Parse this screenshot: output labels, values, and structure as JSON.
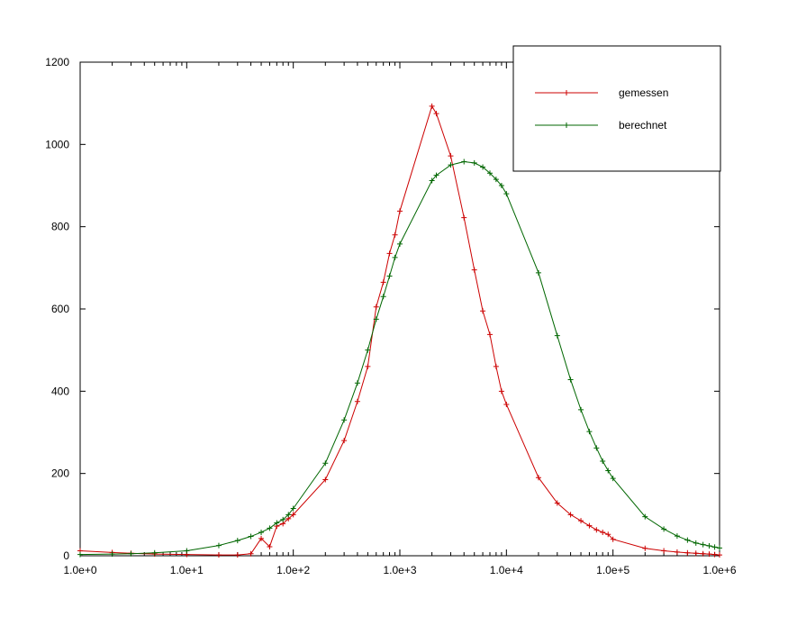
{
  "chart_data": {
    "type": "line",
    "title": "",
    "xlabel": "",
    "ylabel": "",
    "xscale": "log",
    "xlim": [
      1,
      1000000
    ],
    "ylim": [
      0,
      1200
    ],
    "x_ticks": [
      1,
      10,
      100,
      1000,
      10000,
      100000,
      1000000
    ],
    "x_tick_labels": [
      "1.0e+0",
      "1.0e+1",
      "1.0e+2",
      "1.0e+3",
      "1.0e+4",
      "1.0e+5",
      "1.0e+6"
    ],
    "y_ticks": [
      0,
      200,
      400,
      600,
      800,
      1000,
      1200
    ],
    "y_tick_labels": [
      "0",
      "200",
      "400",
      "600",
      "800",
      "1000",
      "1200"
    ],
    "grid": false,
    "legend_position": "top-right",
    "series": [
      {
        "name": "gemessen",
        "color": "#cc0000",
        "marker": "plus",
        "x": [
          1,
          2,
          3,
          5,
          10,
          20,
          30,
          40,
          50,
          60,
          70,
          80,
          90,
          100,
          200,
          300,
          400,
          500,
          600,
          700,
          800,
          900,
          1000,
          2000,
          2200,
          3000,
          4000,
          5000,
          6000,
          7000,
          8000,
          9000,
          10000,
          20000,
          30000,
          40000,
          50000,
          60000,
          70000,
          80000,
          90000,
          100000,
          200000,
          300000,
          400000,
          500000,
          600000,
          700000,
          800000,
          900000,
          1000000
        ],
        "y": [
          12,
          8,
          6,
          4,
          3,
          2,
          2,
          5,
          42,
          22,
          72,
          78,
          90,
          100,
          185,
          280,
          375,
          460,
          605,
          665,
          735,
          780,
          838,
          1093,
          1075,
          972,
          822,
          695,
          595,
          538,
          460,
          400,
          368,
          190,
          128,
          100,
          85,
          73,
          63,
          57,
          52,
          40,
          18,
          12,
          9,
          7,
          6,
          5,
          4,
          3,
          2
        ]
      },
      {
        "name": "berechnet",
        "color": "#006600",
        "marker": "plus",
        "x": [
          1,
          2,
          3,
          5,
          10,
          20,
          30,
          40,
          50,
          60,
          70,
          80,
          90,
          100,
          200,
          300,
          400,
          500,
          600,
          700,
          800,
          900,
          1000,
          2000,
          2200,
          3000,
          4000,
          5000,
          6000,
          7000,
          8000,
          9000,
          10000,
          20000,
          30000,
          40000,
          50000,
          60000,
          70000,
          80000,
          90000,
          100000,
          200000,
          300000,
          400000,
          500000,
          600000,
          700000,
          800000,
          900000,
          1000000
        ],
        "y": [
          3,
          4,
          5,
          7,
          12,
          25,
          37,
          47,
          57,
          67,
          80,
          88,
          100,
          115,
          225,
          330,
          420,
          500,
          575,
          630,
          680,
          725,
          758,
          912,
          925,
          950,
          958,
          955,
          945,
          930,
          915,
          900,
          880,
          688,
          535,
          428,
          355,
          302,
          262,
          230,
          207,
          188,
          95,
          65,
          48,
          38,
          31,
          27,
          24,
          21,
          19
        ]
      }
    ]
  }
}
